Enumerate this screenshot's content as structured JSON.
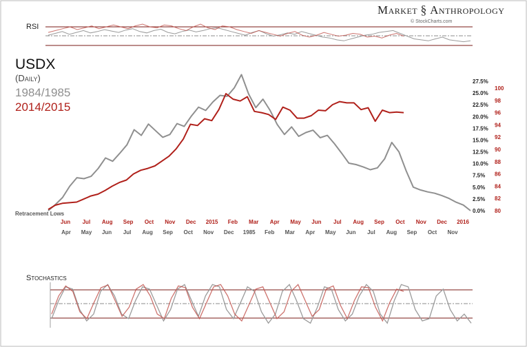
{
  "brand": {
    "left": "Market",
    "right": "Anthropology",
    "icon": "dna-helix-icon"
  },
  "credit": "© StockCharts.com",
  "panels": {
    "rsi_label": "RSI",
    "stoch_label": "Stochastics",
    "retracement_label": "Retracement Lows"
  },
  "colors": {
    "series_1984": "#8f8f8f",
    "series_2014": "#b0201a",
    "band_line": "#7a1a14"
  },
  "chart_data": {
    "type": "line",
    "title": "USDX",
    "subtitle": "(Daily)",
    "series": [
      {
        "name": "1984/1985",
        "axis": "percent",
        "values": [
          0.0,
          1.3,
          2.8,
          5.2,
          7.0,
          6.8,
          7.3,
          9.0,
          11.2,
          10.5,
          12.2,
          14.0,
          17.2,
          16.0,
          18.4,
          17.0,
          15.6,
          16.2,
          18.5,
          17.9,
          20.1,
          22.0,
          21.3,
          23.1,
          24.5,
          24.3,
          26.1,
          28.9,
          24.8,
          21.9,
          23.7,
          21.3,
          18.3,
          16.2,
          17.8,
          15.8,
          16.6,
          17.1,
          15.5,
          16.0,
          14.2,
          12.2,
          10.1,
          9.8,
          9.3,
          8.7,
          9.1,
          11.0,
          14.5,
          12.5,
          8.5,
          5.0,
          4.4,
          4.0,
          3.7,
          3.2,
          2.6,
          1.8,
          1.2,
          0.0
        ]
      },
      {
        "name": "2014/2015",
        "axis": "index",
        "values": [
          80.2,
          80.9,
          81.2,
          81.3,
          81.4,
          81.9,
          82.4,
          82.7,
          83.3,
          84.0,
          84.6,
          85.0,
          86.0,
          86.6,
          86.9,
          87.3,
          88.1,
          88.9,
          90.1,
          91.7,
          94.1,
          93.9,
          95.0,
          94.7,
          96.5,
          99.1,
          98.2,
          97.9,
          98.6,
          96.2,
          96.0,
          95.7,
          94.9,
          96.9,
          96.4,
          95.1,
          95.1,
          95.5,
          96.4,
          96.3,
          97.3,
          97.8,
          97.6,
          97.6,
          96.5,
          96.8,
          94.6,
          96.4,
          96.0,
          96.1,
          96.0
        ]
      }
    ],
    "x_labels_2014": [
      "Jun",
      "Jul",
      "Aug",
      "Sep",
      "Oct",
      "Nov",
      "Dec",
      "2015",
      "Feb",
      "Mar",
      "Apr",
      "May",
      "Jun",
      "Jul",
      "Aug",
      "Sep",
      "Oct",
      "Nov",
      "Dec",
      "2016"
    ],
    "x_labels_1984": [
      "Apr",
      "May",
      "Jun",
      "Jul",
      "Aug",
      "Sep",
      "Oct",
      "Nov",
      "Dec",
      "1985",
      "Feb",
      "Mar",
      "Apr",
      "May",
      "Jun",
      "Jul",
      "Aug",
      "Sep",
      "Oct",
      "Nov"
    ],
    "y_left": {
      "ticks": [
        "0.0%",
        "2.5%",
        "5.0%",
        "7.5%",
        "10.0%",
        "12.5%",
        "15.0%",
        "17.5%",
        "20.0%",
        "22.5%",
        "25.0%",
        "27.5%"
      ],
      "range": [
        0,
        27.5
      ]
    },
    "y_right": {
      "ticks": [
        "80",
        "82",
        "84",
        "86",
        "88",
        "90",
        "92",
        "94",
        "96",
        "98",
        "100"
      ],
      "range": [
        80,
        100
      ]
    },
    "rsi": {
      "levels": [
        70,
        50,
        30
      ],
      "range": [
        25,
        80
      ],
      "series_1984": [
        52,
        56,
        60,
        54,
        58,
        62,
        57,
        60,
        64,
        61,
        58,
        63,
        66,
        60,
        57,
        62,
        65,
        58,
        55,
        60,
        63,
        59,
        62,
        66,
        68,
        64,
        60,
        56,
        52,
        58,
        62,
        55,
        50,
        53,
        57,
        54,
        60,
        56,
        52,
        48,
        46,
        42,
        40,
        44,
        48,
        52,
        54,
        58,
        60,
        62,
        56,
        50,
        44,
        42,
        40,
        44,
        48,
        42,
        40,
        38,
        40
      ],
      "series_2014": [
        58,
        62,
        66,
        70,
        64,
        68,
        72,
        66,
        70,
        74,
        70,
        66,
        72,
        76,
        70,
        68,
        74,
        72,
        66,
        62,
        70,
        76,
        68,
        64,
        72,
        70,
        64,
        60,
        56,
        62,
        58,
        54,
        50,
        56,
        60,
        52,
        48,
        52,
        58,
        54,
        50,
        52,
        56,
        54,
        48,
        50,
        46,
        52,
        56,
        50
      ]
    },
    "stochastics": {
      "levels": [
        80,
        50,
        20
      ],
      "range": [
        0,
        100
      ],
      "series_1984": [
        20,
        60,
        90,
        85,
        40,
        15,
        30,
        80,
        95,
        70,
        30,
        20,
        60,
        90,
        85,
        50,
        15,
        40,
        85,
        95,
        60,
        25,
        70,
        95,
        90,
        40,
        20,
        55,
        90,
        80,
        35,
        10,
        30,
        80,
        95,
        60,
        20,
        10,
        45,
        90,
        85,
        40,
        15,
        30,
        70,
        95,
        80,
        30,
        10,
        60,
        95,
        90,
        40,
        15,
        20,
        70,
        85,
        40,
        15,
        30,
        10
      ],
      "series_2014": [
        30,
        70,
        92,
        80,
        35,
        20,
        55,
        88,
        94,
        60,
        25,
        45,
        85,
        95,
        70,
        30,
        20,
        65,
        92,
        88,
        45,
        20,
        55,
        90,
        95,
        70,
        30,
        15,
        50,
        85,
        90,
        55,
        20,
        35,
        80,
        95,
        60,
        25,
        40,
        85,
        92,
        50,
        20,
        60,
        90,
        88,
        45,
        15,
        55,
        85,
        80
      ]
    }
  }
}
